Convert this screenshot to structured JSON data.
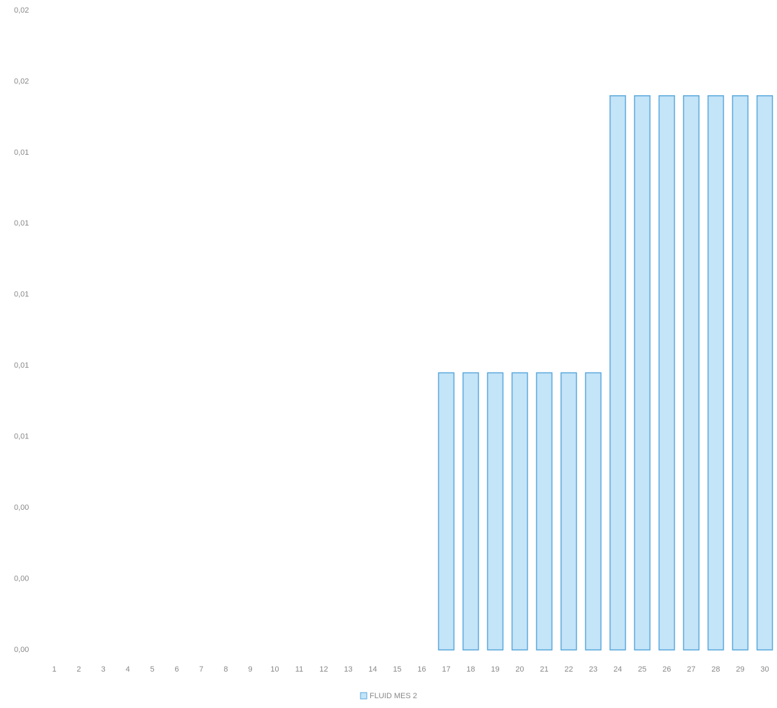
{
  "chart_data": {
    "type": "bar",
    "categories": [
      "1",
      "2",
      "3",
      "4",
      "5",
      "6",
      "7",
      "8",
      "9",
      "10",
      "11",
      "12",
      "13",
      "14",
      "15",
      "16",
      "17",
      "18",
      "19",
      "20",
      "21",
      "22",
      "23",
      "24",
      "25",
      "26",
      "27",
      "28",
      "29",
      "30"
    ],
    "series": [
      {
        "name": "FLUID MES 2",
        "color": "#c4e4f8",
        "edge": "#5aa8dc",
        "values": [
          0,
          0,
          0,
          0,
          0,
          0,
          0,
          0,
          0,
          0,
          0,
          0,
          0,
          0,
          0,
          0,
          0.0078,
          0.0078,
          0.0078,
          0.0078,
          0.0078,
          0.0078,
          0.0078,
          0.0156,
          0.0156,
          0.0156,
          0.0156,
          0.0156,
          0.0156,
          0.0156
        ]
      }
    ],
    "ylim": [
      0,
      0.018
    ],
    "yticks": [
      {
        "value": 0,
        "label": "0,00"
      },
      {
        "value": 0.002,
        "label": "0,00"
      },
      {
        "value": 0.004,
        "label": "0,00"
      },
      {
        "value": 0.006,
        "label": "0,01"
      },
      {
        "value": 0.008,
        "label": "0,01"
      },
      {
        "value": 0.01,
        "label": "0,01"
      },
      {
        "value": 0.012,
        "label": "0,01"
      },
      {
        "value": 0.014,
        "label": "0,01"
      },
      {
        "value": 0.016,
        "label": "0,02"
      },
      {
        "value": 0.018,
        "label": "0,02"
      }
    ],
    "grid": false,
    "legend": "bottom"
  }
}
